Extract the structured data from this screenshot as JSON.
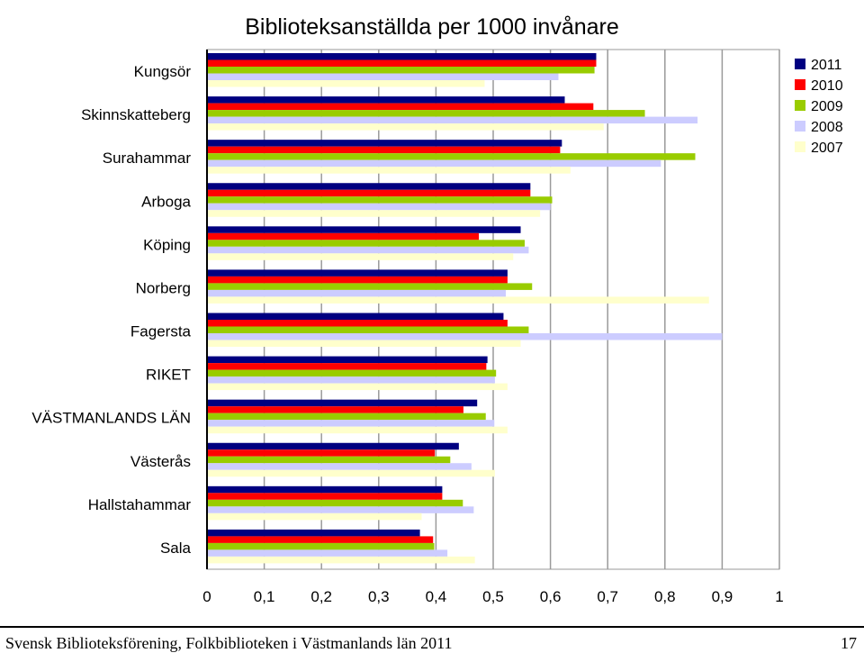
{
  "chart_data": {
    "type": "bar",
    "orientation": "horizontal",
    "title": "Biblioteksanställda per 1000 invånare",
    "categories": [
      "Kungsör",
      "Skinnskatteberg",
      "Surahammar",
      "Arboga",
      "Köping",
      "Norberg",
      "Fagersta",
      "RIKET",
      "VÄSTMANLANDS LÄN",
      "Västerås",
      "Hallstahammar",
      "Sala"
    ],
    "series": [
      {
        "name": "2011",
        "color": "#000080",
        "values": [
          0.68,
          0.625,
          0.62,
          0.565,
          0.548,
          0.525,
          0.518,
          0.49,
          0.472,
          0.44,
          0.411,
          0.372
        ]
      },
      {
        "name": "2010",
        "color": "#ff0000",
        "values": [
          0.68,
          0.675,
          0.617,
          0.565,
          0.475,
          0.525,
          0.525,
          0.488,
          0.448,
          0.398,
          0.411,
          0.395
        ]
      },
      {
        "name": "2009",
        "color": "#99cc00",
        "values": [
          0.677,
          0.765,
          0.853,
          0.603,
          0.555,
          0.568,
          0.562,
          0.505,
          0.487,
          0.425,
          0.447,
          0.397
        ]
      },
      {
        "name": "2008",
        "color": "#ccccff",
        "values": [
          0.614,
          0.857,
          0.793,
          0.6,
          0.562,
          0.522,
          0.9,
          0.503,
          0.502,
          0.462,
          0.466,
          0.42
        ]
      },
      {
        "name": "2007",
        "color": "#ffffcc",
        "values": [
          0.485,
          0.693,
          0.635,
          0.582,
          0.535,
          0.877,
          0.548,
          0.525,
          0.525,
          0.503,
          0.375,
          0.468
        ]
      }
    ],
    "x_ticks": [
      "0",
      "0,1",
      "0,2",
      "0,3",
      "0,4",
      "0,5",
      "0,6",
      "0,7",
      "0,8",
      "0,9",
      "1"
    ],
    "xlim": [
      0,
      1
    ],
    "grid": "vertical",
    "legend_position": "top-right"
  },
  "footer": {
    "source": "Svensk Biblioteksförening, Folkbiblioteken i Västmanlands län 2011",
    "page_number": "17"
  }
}
